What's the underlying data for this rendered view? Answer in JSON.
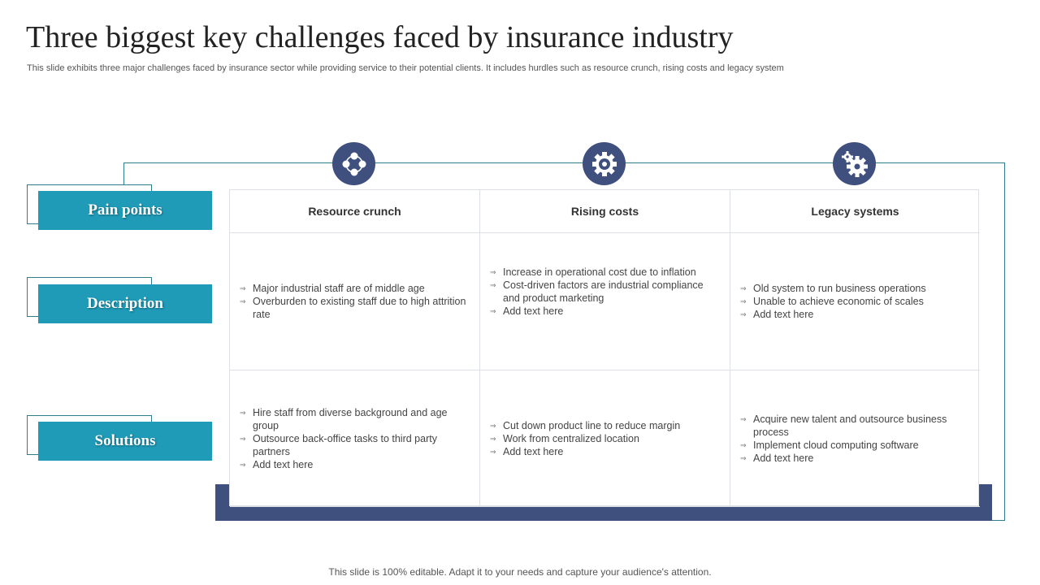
{
  "title": "Three biggest key challenges faced by insurance industry",
  "subtitle": "This slide exhibits three major challenges faced by insurance sector while providing service to their potential clients. It includes hurdles such as resource crunch, rising costs and legacy system",
  "rows": [
    "Pain points",
    "Description",
    "Solutions"
  ],
  "columns": [
    {
      "header": "Resource crunch",
      "icon": "resource-network-icon",
      "description": [
        "Major industrial staff are of middle age",
        "Overburden  to existing staff due to high attrition rate"
      ],
      "solutions": [
        "Hire staff from diverse  background and age group",
        "Outsource back-office tasks to third party partners",
        "Add text here"
      ]
    },
    {
      "header": "Rising costs",
      "icon": "gear-cost-icon",
      "description": [
        "Increase in operational  cost due to inflation",
        "Cost-driven  factors are industrial compliance and product marketing",
        "Add text here"
      ],
      "solutions": [
        "Cut down  product line to reduce  margin",
        "Work from centralized location",
        "Add text here"
      ]
    },
    {
      "header": "Legacy systems",
      "icon": "gears-icon",
      "description": [
        "Old system to run business operations",
        "Unable  to achieve  economic of scales",
        "Add text here"
      ],
      "solutions": [
        "Acquire new talent and outsource business process",
        "Implement  cloud computing software",
        "Add text here"
      ]
    }
  ],
  "footer": "This slide is 100% editable. Adapt it to your needs and capture your audience's attention.",
  "colors": {
    "teal": "#1f9bb8",
    "navy": "#3f4f7e",
    "line": "#2e7d8a"
  }
}
